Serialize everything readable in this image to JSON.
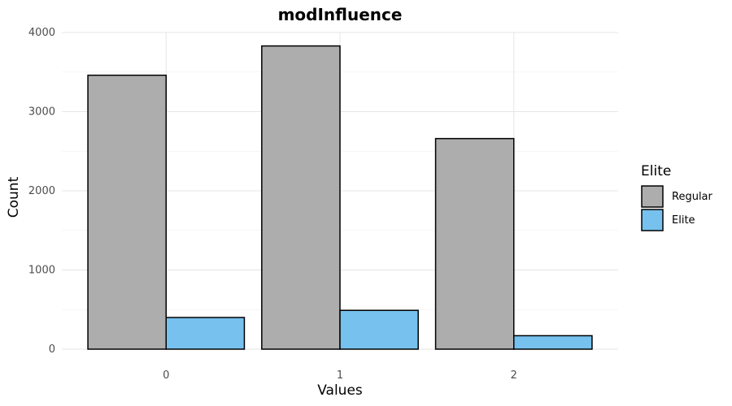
{
  "chart_data": {
    "type": "bar",
    "title": "modInfluence",
    "xlabel": "Values",
    "ylabel": "Count",
    "categories": [
      "0",
      "1",
      "2"
    ],
    "series": [
      {
        "name": "Regular",
        "values": [
          3460,
          3830,
          2660
        ],
        "color": "#adadad"
      },
      {
        "name": "Elite",
        "values": [
          400,
          490,
          170
        ],
        "color": "#76c1ed"
      }
    ],
    "ylim": [
      0,
      4000
    ],
    "yticks": [
      0,
      1000,
      2000,
      3000,
      4000
    ],
    "grid": true,
    "legend": {
      "title": "Elite",
      "placement": "right"
    }
  }
}
